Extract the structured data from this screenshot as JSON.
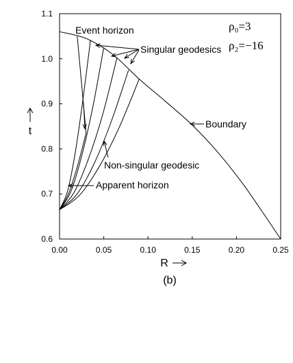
{
  "chart_data": {
    "type": "line",
    "color": "#000000",
    "xlabel": "R",
    "ylabel": "t",
    "caption": "(b)",
    "xlim": [
      0,
      0.25
    ],
    "ylim": [
      0.6,
      1.1
    ],
    "xticks": [
      {
        "value": 0,
        "label": "0.00"
      },
      {
        "value": 0.05,
        "label": "0.05"
      },
      {
        "value": 0.1,
        "label": "0.10"
      },
      {
        "value": 0.15,
        "label": "0.15"
      },
      {
        "value": 0.2,
        "label": "0.20"
      },
      {
        "value": 0.25,
        "label": "0.25"
      }
    ],
    "yticks": [
      0.6,
      0.7,
      0.8,
      0.9,
      {
        "value": 1.0,
        "label": "1.0"
      },
      1.1
    ],
    "series": [
      {
        "x": [
          0,
          0.03,
          0.06,
          0.09,
          0.12,
          0.15,
          0.18,
          0.21,
          0.25
        ],
        "values": [
          1.06,
          1.045,
          1.01,
          0.955,
          0.905,
          0.853,
          0.79,
          0.715,
          0.6
        ]
      },
      {
        "x": [
          0.02,
          0.03
        ],
        "values": [
          1.05,
          0.835
        ]
      },
      {
        "x": [
          0,
          0.01,
          0.02,
          0.03
        ],
        "values": [
          0.665,
          0.7,
          0.76,
          0.835
        ]
      },
      {
        "x": [
          0,
          0.009,
          0.0175,
          0.026,
          0.035
        ],
        "values": [
          0.665,
          0.706,
          0.789,
          0.903,
          1.042
        ]
      },
      {
        "x": [
          0,
          0.0125,
          0.025,
          0.0375,
          0.05
        ],
        "values": [
          0.665,
          0.704,
          0.784,
          0.892,
          1.025
        ]
      },
      {
        "x": [
          0,
          0.016,
          0.0325,
          0.049,
          0.065
        ],
        "values": [
          0.665,
          0.702,
          0.777,
          0.878,
          1.003
        ]
      },
      {
        "x": [
          0,
          0.0195,
          0.039,
          0.0585,
          0.078
        ],
        "values": [
          0.665,
          0.699,
          0.767,
          0.861,
          0.975
        ]
      },
      {
        "x": [
          0,
          0.0225,
          0.045,
          0.0675,
          0.09
        ],
        "values": [
          0.665,
          0.697,
          0.761,
          0.848,
          0.955
        ]
      }
    ],
    "annotations": [
      "Event horizon",
      "Singular geodesics",
      "ρ₀=3",
      "ρ₂=−16",
      "Boundary",
      "Non-singular geodesic",
      "Apparent horizon"
    ]
  }
}
